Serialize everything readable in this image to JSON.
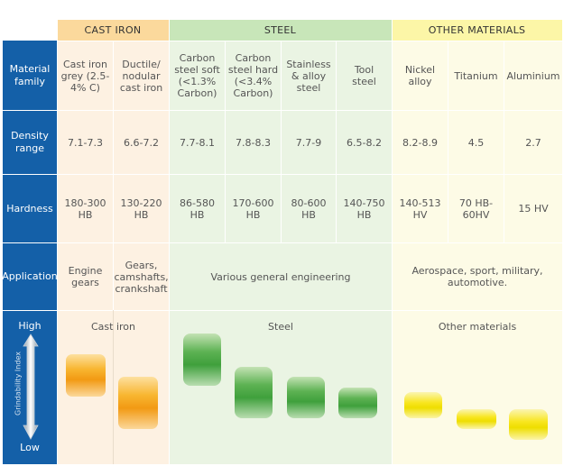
{
  "groups": {
    "cast_iron": "CAST IRON",
    "steel": "STEEL",
    "other": "OTHER MATERIALS"
  },
  "row_labels": {
    "family": "Material family",
    "density": "Density range",
    "hardness": "Hardness",
    "application": "Application",
    "grindability": "Grindability Index",
    "high": "High",
    "low": "Low"
  },
  "columns": [
    {
      "family": "Cast iron grey (2.5-4% C)",
      "density": "7.1-7.3",
      "hardness": "180-300 HB"
    },
    {
      "family": "Ductile/ nodular cast iron",
      "density": "6.6-7.2",
      "hardness": "130-220 HB"
    },
    {
      "family": "Carbon steel soft (<1.3% Carbon)",
      "density": "7.7-8.1",
      "hardness": "86-580 HB"
    },
    {
      "family": "Carbon steel hard (<3.4% Carbon)",
      "density": "7.8-8.3",
      "hardness": "170-600 HB"
    },
    {
      "family": "Stainless & alloy steel",
      "density": "7.7-9",
      "hardness": "80-600 HB"
    },
    {
      "family": "Tool steel",
      "density": "6.5-8.2",
      "hardness": "140-750 HB"
    },
    {
      "family": "Nickel alloy",
      "density": "8.2-8.9",
      "hardness": "140-513 HV"
    },
    {
      "family": "Titanium",
      "density": "4.5",
      "hardness": "70 HB- 60HV"
    },
    {
      "family": "Aluminium",
      "density": "2.7",
      "hardness": "15 HV"
    }
  ],
  "applications": {
    "cast_grey": "Engine gears",
    "cast_ductile": "Gears, camshafts, crankshaft",
    "steel": "Various general engineering",
    "other": "Aerospace, sport, military, automotive."
  },
  "grind_labels": {
    "cast": "Cast iron",
    "steel": "Steel",
    "other": "Other materials"
  },
  "colors": {
    "row_label_bg": "#1460a8",
    "cast_iron": "#f7a823",
    "steel": "#4aa845",
    "other": "#f3e40d"
  }
}
